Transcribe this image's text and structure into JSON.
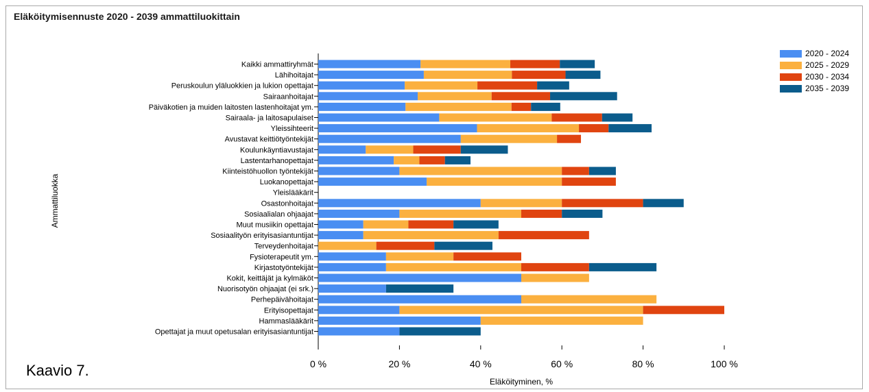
{
  "window": {
    "title": "Eläköitymisennuste 2020 - 2039 ammattiluokittain"
  },
  "caption": "Kaavio 7.",
  "chart_data": {
    "type": "bar",
    "orientation": "horizontal",
    "stacked": true,
    "title": "Eläköitymisennuste 2020 - 2039 ammattiluokittain",
    "xlabel": "Eläköityminen, %",
    "ylabel": "Ammattiluokka",
    "xlim": [
      0,
      100
    ],
    "xticks": [
      0,
      20,
      40,
      60,
      80,
      100
    ],
    "xtick_labels": [
      "0 %",
      "20 %",
      "40 %",
      "60 %",
      "80 %",
      "100 %"
    ],
    "grid": false,
    "legend_position": "top-right",
    "categories": [
      "Kaikki ammattiryhmät",
      "Lähihoitajat",
      "Peruskoulun yläluokkien ja lukion opettajat",
      "Sairaanhoitajat",
      "Päiväkotien ja muiden laitosten lastenhoitajat ym.",
      "Sairaala- ja laitosapulaiset",
      "Yleissihteerit",
      "Avustavat keittiötyöntekijät",
      "Koulunkäyntiavustajat",
      "Lastentarhanopettajat",
      "Kiinteistöhuollon työntekijät",
      "Luokanopettajat",
      "Yleislääkärit",
      "Osastonhoitajat",
      "Sosiaalialan ohjaajat",
      "Muut musiikin opettajat",
      "Sosiaalityön erityisasiantuntijat",
      "Terveydenhoitajat",
      "Fysioterapeutit ym.",
      "Kirjastotyöntekijät",
      "Kokit, keittäjät ja kylmäköt",
      "Nuorisotyön ohjaajat (ei srk.)",
      "Perhepäivähoitajat",
      "Erityisopettajat",
      "Hammaslääkärit",
      "Opettajat ja muut opetusalan erityisasiantuntijat"
    ],
    "series": [
      {
        "name": "2020 - 2024",
        "color": "#4a8ef2",
        "values": [
          25.2,
          26.0,
          21.3,
          24.5,
          21.5,
          29.8,
          39.1,
          35.1,
          11.7,
          18.6,
          20.0,
          26.7,
          0,
          40.0,
          20.0,
          11.1,
          11.1,
          0,
          16.7,
          16.7,
          50.0,
          16.7,
          50.0,
          20.0,
          40.0,
          20.0
        ]
      },
      {
        "name": "2025 - 2029",
        "color": "#fbb03f",
        "values": [
          22.1,
          21.7,
          17.9,
          18.2,
          26.1,
          27.7,
          25.1,
          23.7,
          11.7,
          6.3,
          40.0,
          33.3,
          0,
          20.0,
          30.0,
          11.1,
          33.3,
          14.3,
          16.6,
          33.3,
          16.7,
          0,
          33.3,
          60.0,
          40.0,
          0
        ]
      },
      {
        "name": "2030 - 2034",
        "color": "#e04410",
        "values": [
          12.2,
          13.2,
          14.7,
          14.4,
          4.8,
          12.4,
          7.3,
          5.9,
          11.7,
          6.3,
          6.7,
          13.3,
          0,
          20.0,
          10.0,
          11.1,
          22.3,
          14.3,
          16.7,
          16.7,
          0,
          0,
          0,
          20.0,
          0,
          0
        ]
      },
      {
        "name": "2035 - 2039",
        "color": "#0b5c8c",
        "values": [
          8.6,
          8.6,
          7.9,
          16.5,
          7.2,
          7.5,
          10.6,
          0,
          11.6,
          6.3,
          6.6,
          0,
          0,
          10.0,
          10.0,
          11.1,
          0,
          14.3,
          0,
          16.6,
          0,
          16.6,
          0,
          0,
          0,
          20.0
        ]
      }
    ]
  }
}
